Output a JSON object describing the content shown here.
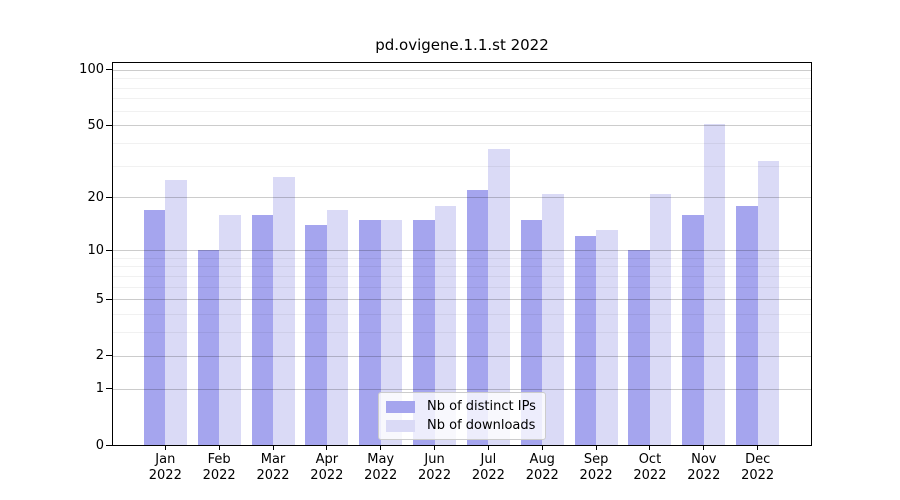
{
  "chart_data": {
    "type": "bar",
    "title": "pd.ovigene.1.1.st 2022",
    "categories": [
      "Jan",
      "Feb",
      "Mar",
      "Apr",
      "May",
      "Jun",
      "Jul",
      "Aug",
      "Sep",
      "Oct",
      "Nov",
      "Dec"
    ],
    "category_year": "2022",
    "series": [
      {
        "name": "Nb of distinct IPs",
        "color": "#a5a5ee",
        "values": [
          17,
          10,
          16,
          14,
          15,
          15,
          22,
          15,
          12,
          10,
          16,
          18
        ]
      },
      {
        "name": "Nb of downloads",
        "color": "#dadaf6",
        "values": [
          25,
          16,
          26,
          17,
          15,
          18,
          37,
          21,
          13,
          21,
          51,
          32
        ]
      }
    ],
    "y_ticks": [
      100,
      50,
      20,
      10,
      5,
      2,
      1,
      0
    ],
    "yscale": "log1p",
    "ylim": [
      0,
      110
    ],
    "grid": true,
    "legend_position": "lower center"
  }
}
